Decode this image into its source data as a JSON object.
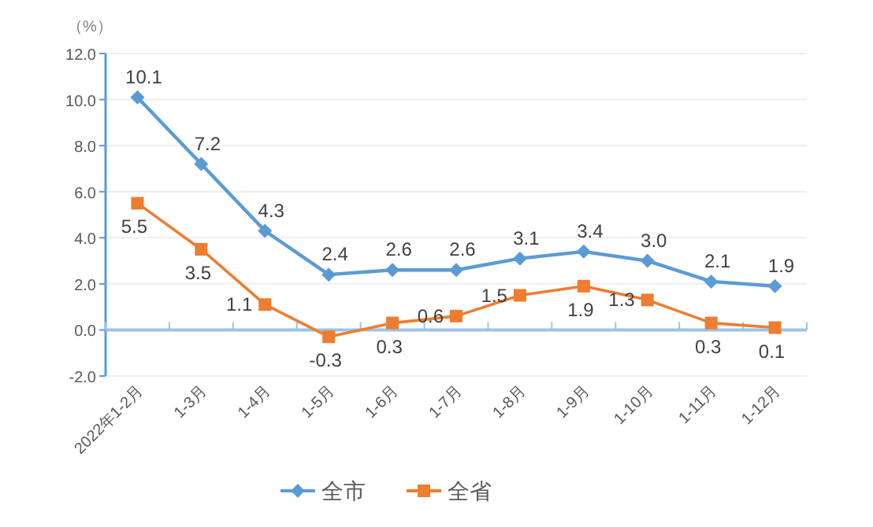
{
  "chart_data": {
    "type": "line",
    "ylabel": "（%）",
    "categories": [
      "2022年1-2月",
      "1-3月",
      "1-4月",
      "1-5月",
      "1-6月",
      "1-7月",
      "1-8月",
      "1-9月",
      "1-10月",
      "1-11月",
      "1-12月"
    ],
    "series": [
      {
        "name": "全市",
        "color": "#5b9bd5",
        "marker": "diamond",
        "values": [
          10.1,
          7.2,
          4.3,
          2.4,
          2.6,
          2.6,
          3.1,
          3.4,
          3.0,
          2.1,
          1.9
        ],
        "value_labels": [
          "10.1",
          "7.2",
          "4.3",
          "2.4",
          "2.6",
          "2.6",
          "3.1",
          "3.4",
          "3.0",
          "2.1",
          "1.9"
        ]
      },
      {
        "name": "全省",
        "color": "#ed7d31",
        "marker": "square",
        "values": [
          5.5,
          3.5,
          1.1,
          -0.3,
          0.3,
          0.6,
          1.5,
          1.9,
          1.3,
          0.3,
          0.1
        ],
        "value_labels": [
          "5.5",
          "3.5",
          "1.1",
          "-0.3",
          "0.3",
          "0.6",
          "1.5",
          "1.9",
          "1.3",
          "0.3",
          "0.1"
        ]
      }
    ],
    "ylim": [
      -2,
      12
    ],
    "yticks": [
      {
        "value": -2,
        "label": "-2.0"
      },
      {
        "value": 0,
        "label": "0.0"
      },
      {
        "value": 2,
        "label": "2.0"
      },
      {
        "value": 4,
        "label": "4.0"
      },
      {
        "value": 6,
        "label": "6.0"
      },
      {
        "value": 8,
        "label": "8.0"
      },
      {
        "value": 10,
        "label": "10.0"
      },
      {
        "value": 12,
        "label": "12.0"
      }
    ],
    "ref_lines": [
      {
        "axis": "y",
        "value": 0,
        "color": "#9dc3e6"
      }
    ],
    "grid": "y",
    "legend": "bottom",
    "line_style": "solid"
  }
}
